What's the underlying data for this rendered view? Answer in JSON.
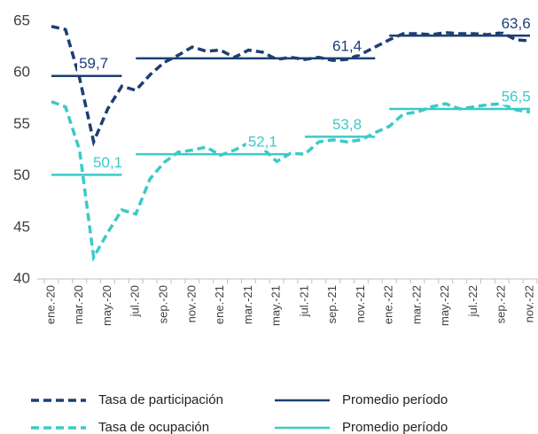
{
  "chart_data": {
    "type": "line",
    "categories": [
      "ene.-20",
      null,
      "mar.-20",
      null,
      "may.-20",
      null,
      "jul.-20",
      null,
      "sep.-20",
      null,
      "nov.-20",
      null,
      "ene.-21",
      null,
      "mar.-21",
      null,
      "may.-21",
      null,
      "jul.-21",
      null,
      "sep.-21",
      null,
      "nov.-21",
      null,
      "ene.-22",
      null,
      "mar.-22",
      null,
      "may.-22",
      null,
      "jul.-22",
      null,
      "sep.-22",
      null,
      "nov.-22"
    ],
    "ylim": [
      40,
      65
    ],
    "yticks": [
      40,
      45,
      50,
      55,
      60,
      65
    ],
    "grid": false,
    "legend": "bottom",
    "series": [
      {
        "name": "Tasa de participación",
        "color": "#1c3f73",
        "style": "dashed",
        "values": [
          64.5,
          64.2,
          59.5,
          53.3,
          56.5,
          58.7,
          58.3,
          59.8,
          61.0,
          61.7,
          62.5,
          62.1,
          62.2,
          61.5,
          62.2,
          62.0,
          61.3,
          61.5,
          61.3,
          61.5,
          61.2,
          61.3,
          61.8,
          62.5,
          63.2,
          63.8,
          63.8,
          63.7,
          63.9,
          63.8,
          63.8,
          63.7,
          63.9,
          63.2,
          63.1
        ]
      },
      {
        "name": "Promedio período",
        "color": "#1c3f73",
        "style": "solid",
        "values": [
          59.7,
          59.7,
          59.7,
          59.7,
          59.7,
          59.7,
          61.4,
          61.4,
          61.4,
          61.4,
          61.4,
          61.4,
          61.4,
          61.4,
          61.4,
          61.4,
          61.4,
          61.4,
          61.4,
          61.4,
          61.4,
          61.4,
          61.4,
          61.4,
          63.6,
          63.6,
          63.6,
          63.6,
          63.6,
          63.6,
          63.6,
          63.6,
          63.6,
          63.6,
          63.6
        ],
        "value_labels": [
          null,
          null,
          null,
          "59,7",
          null,
          null,
          null,
          null,
          null,
          null,
          null,
          null,
          null,
          null,
          null,
          null,
          null,
          null,
          null,
          null,
          null,
          "61,4",
          null,
          null,
          null,
          null,
          null,
          null,
          null,
          null,
          null,
          null,
          null,
          "63,6",
          null
        ]
      },
      {
        "name": "Tasa de ocupación",
        "color": "#3cc9c9",
        "style": "dashed",
        "values": [
          57.2,
          56.7,
          52.5,
          42.1,
          44.5,
          46.7,
          46.3,
          49.7,
          51.3,
          52.3,
          52.5,
          52.8,
          52.0,
          52.5,
          53.2,
          52.7,
          51.4,
          52.2,
          52.1,
          53.3,
          53.5,
          53.3,
          53.5,
          54.2,
          54.8,
          56.0,
          56.2,
          56.7,
          57.0,
          56.5,
          56.7,
          56.9,
          57.0,
          56.4,
          56.2
        ]
      },
      {
        "name": "Promedio período",
        "color": "#3cc9c9",
        "style": "solid",
        "values": [
          50.1,
          50.1,
          50.1,
          50.1,
          50.1,
          50.1,
          52.1,
          52.1,
          52.1,
          52.1,
          52.1,
          52.1,
          52.1,
          52.1,
          52.1,
          52.1,
          52.1,
          52.1,
          53.8,
          53.8,
          53.8,
          53.8,
          53.8,
          53.8,
          56.5,
          56.5,
          56.5,
          56.5,
          56.5,
          56.5,
          56.5,
          56.5,
          56.5,
          56.5,
          56.5
        ],
        "value_labels": [
          null,
          null,
          null,
          null,
          "50,1",
          null,
          null,
          null,
          null,
          null,
          null,
          null,
          null,
          null,
          null,
          "52,1",
          null,
          null,
          null,
          null,
          null,
          "53,8",
          null,
          null,
          null,
          null,
          null,
          null,
          null,
          null,
          null,
          null,
          null,
          "56,5",
          null
        ]
      }
    ]
  }
}
